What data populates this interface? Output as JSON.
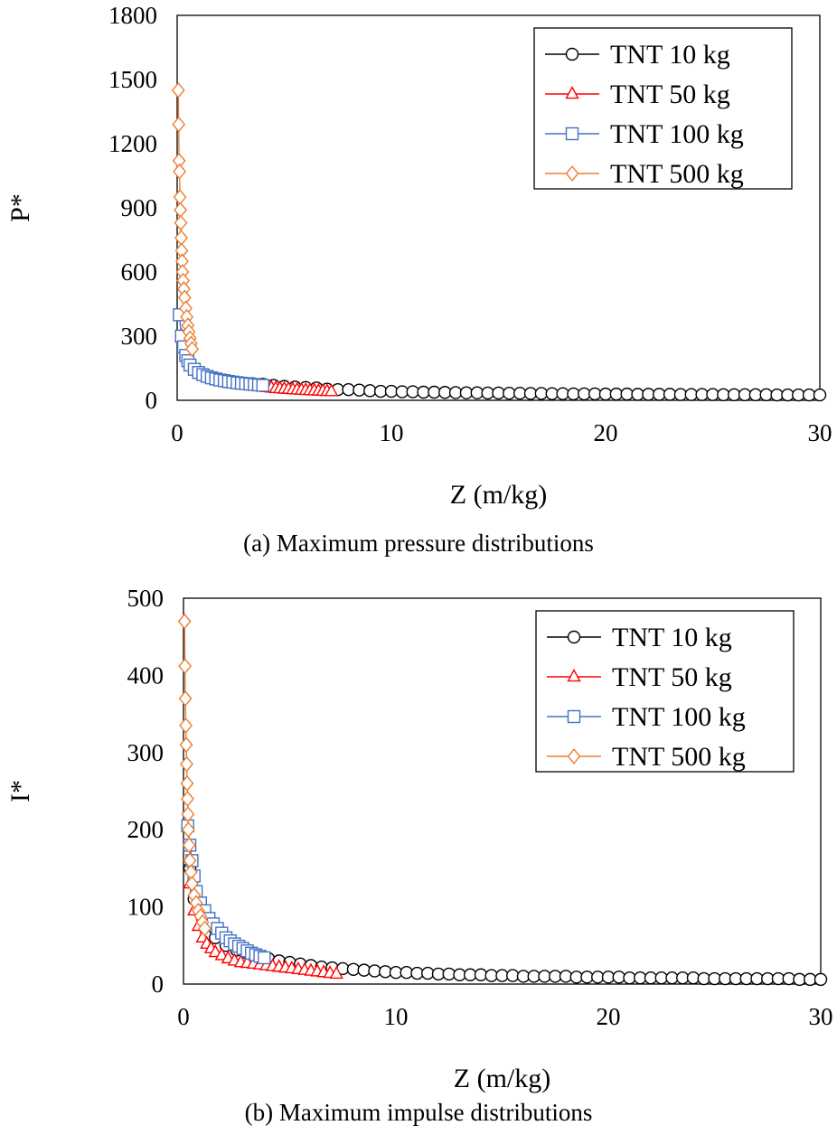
{
  "chart_data": [
    {
      "type": "scatter",
      "caption": "(a) Maximum pressure distributions",
      "xlabel": "Z (m/kg)",
      "ylabel": "P*",
      "xlim": [
        0,
        30
      ],
      "ylim": [
        0,
        1800
      ],
      "xticks": [
        0,
        10,
        20,
        30
      ],
      "yticks": [
        0,
        300,
        600,
        900,
        1200,
        1500,
        1800
      ],
      "grid": false,
      "legend": "top-right",
      "series": [
        {
          "name": "TNT 10 kg",
          "marker": "circle",
          "color": "#000000",
          "x": [
            0.3,
            0.5,
            1,
            1.5,
            2,
            2.5,
            3,
            3.5,
            4,
            4.5,
            5,
            5.5,
            6,
            6.5,
            7,
            7.5,
            8,
            8.5,
            9,
            9.5,
            10,
            10.5,
            11,
            11.5,
            12,
            12.5,
            13,
            13.5,
            14,
            14.5,
            15,
            15.5,
            16,
            16.5,
            17,
            17.5,
            18,
            18.5,
            19,
            19.5,
            20,
            20.5,
            21,
            21.5,
            22,
            22.5,
            23,
            23.5,
            24,
            24.5,
            25,
            25.5,
            26,
            26.5,
            27,
            27.5,
            28,
            28.5,
            29,
            29.5,
            30
          ],
          "y": [
            250,
            180,
            130,
            110,
            95,
            88,
            82,
            78,
            75,
            70,
            65,
            62,
            60,
            58,
            52,
            50,
            50,
            48,
            45,
            42,
            42,
            40,
            40,
            38,
            38,
            37,
            36,
            35,
            35,
            34,
            34,
            33,
            33,
            32,
            32,
            31,
            31,
            30,
            30,
            30,
            29,
            29,
            29,
            28,
            28,
            28,
            28,
            27,
            27,
            27,
            27,
            26,
            26,
            26,
            26,
            26,
            25,
            25,
            25,
            25,
            25
          ]
        },
        {
          "name": "TNT 50 kg",
          "marker": "triangle",
          "color": "#ff0000",
          "x": [
            0.2,
            0.4,
            0.7,
            1,
            1.5,
            2,
            2.5,
            3,
            3.5,
            4,
            4.2,
            4.4,
            4.6,
            4.8,
            5,
            5.2,
            5.4,
            5.6,
            5.8,
            6,
            6.2,
            6.4,
            6.6,
            6.8,
            7,
            7.2
          ],
          "y": [
            300,
            220,
            160,
            130,
            105,
            90,
            80,
            74,
            68,
            63,
            60,
            58,
            56,
            55,
            53,
            52,
            50,
            49,
            48,
            47,
            46,
            45,
            44,
            43,
            42,
            41
          ]
        },
        {
          "name": "TNT 100 kg",
          "marker": "square",
          "color": "#4472c4",
          "x": [
            0.1,
            0.2,
            0.3,
            0.4,
            0.5,
            0.6,
            0.8,
            1,
            1.2,
            1.4,
            1.6,
            1.8,
            2,
            2.2,
            2.4,
            2.6,
            2.8,
            3,
            3.2,
            3.4,
            3.6,
            3.8,
            4
          ],
          "y": [
            400,
            300,
            250,
            210,
            185,
            165,
            145,
            130,
            120,
            112,
            105,
            100,
            95,
            92,
            88,
            85,
            82,
            80,
            78,
            76,
            74,
            72,
            70
          ]
        },
        {
          "name": "TNT 500 kg",
          "marker": "diamond",
          "color": "#ed7d31",
          "x": [
            0.05,
            0.07,
            0.09,
            0.11,
            0.13,
            0.15,
            0.17,
            0.19,
            0.21,
            0.23,
            0.25,
            0.28,
            0.31,
            0.35,
            0.4,
            0.45,
            0.5,
            0.55,
            0.6,
            0.65,
            0.7
          ],
          "y": [
            1450,
            1290,
            1120,
            1070,
            950,
            890,
            830,
            760,
            700,
            650,
            600,
            560,
            520,
            480,
            430,
            390,
            350,
            320,
            290,
            265,
            240
          ]
        }
      ]
    },
    {
      "type": "scatter",
      "caption": "(b) Maximum impulse distributions",
      "xlabel": "Z (m/kg)",
      "ylabel": "I*",
      "xlim": [
        0,
        30
      ],
      "ylim": [
        0,
        500
      ],
      "xticks": [
        0,
        10,
        20,
        30
      ],
      "yticks": [
        0,
        100,
        200,
        300,
        400,
        500
      ],
      "grid": false,
      "legend": "top-right",
      "series": [
        {
          "name": "TNT 10 kg",
          "marker": "circle",
          "color": "#000000",
          "x": [
            0.3,
            0.5,
            1,
            1.5,
            2,
            2.5,
            3,
            3.5,
            4,
            4.5,
            5,
            5.5,
            6,
            6.5,
            7,
            7.5,
            8,
            8.5,
            9,
            9.5,
            10,
            10.5,
            11,
            11.5,
            12,
            12.5,
            13,
            13.5,
            14,
            14.5,
            15,
            15.5,
            16,
            16.5,
            17,
            17.5,
            18,
            18.5,
            19,
            19.5,
            20,
            20.5,
            21,
            21.5,
            22,
            22.5,
            23,
            23.5,
            24,
            24.5,
            25,
            25.5,
            26,
            26.5,
            27,
            27.5,
            28,
            28.5,
            29,
            29.5,
            30
          ],
          "y": [
            150,
            110,
            75,
            60,
            50,
            44,
            40,
            36,
            33,
            30,
            28,
            26,
            24,
            22,
            21,
            20,
            19,
            18,
            17,
            16,
            15,
            15,
            14,
            14,
            13,
            13,
            12,
            12,
            12,
            11,
            11,
            11,
            10,
            10,
            10,
            10,
            10,
            9,
            9,
            9,
            9,
            9,
            8,
            8,
            8,
            8,
            8,
            8,
            8,
            7,
            7,
            7,
            7,
            7,
            7,
            7,
            7,
            7,
            6,
            6,
            6
          ]
        },
        {
          "name": "TNT 50 kg",
          "marker": "triangle",
          "color": "#ff0000",
          "x": [
            0.3,
            0.5,
            0.7,
            0.9,
            1.1,
            1.3,
            1.5,
            1.8,
            2.1,
            2.4,
            2.7,
            3,
            3.3,
            3.6,
            3.9,
            4.2,
            4.5,
            4.8,
            5.1,
            5.4,
            5.7,
            6,
            6.3,
            6.6,
            6.9,
            7.2
          ],
          "y": [
            130,
            95,
            75,
            60,
            52,
            46,
            41,
            37,
            33,
            30,
            28,
            27,
            26,
            25,
            24,
            23,
            22,
            21,
            20,
            19,
            18,
            17,
            16,
            15,
            14,
            13
          ]
        },
        {
          "name": "TNT 100 kg",
          "marker": "square",
          "color": "#4472c4",
          "x": [
            0.2,
            0.3,
            0.4,
            0.5,
            0.6,
            0.8,
            1,
            1.2,
            1.4,
            1.6,
            1.8,
            2,
            2.2,
            2.4,
            2.6,
            2.8,
            3,
            3.2,
            3.4,
            3.6,
            3.8
          ],
          "y": [
            205,
            180,
            160,
            140,
            120,
            105,
            95,
            85,
            78,
            72,
            66,
            60,
            56,
            52,
            49,
            46,
            43,
            40,
            38,
            36,
            34
          ]
        },
        {
          "name": "TNT 500 kg",
          "marker": "diamond",
          "color": "#ed7d31",
          "x": [
            0.05,
            0.07,
            0.09,
            0.11,
            0.13,
            0.15,
            0.17,
            0.19,
            0.21,
            0.23,
            0.26,
            0.3,
            0.35,
            0.4,
            0.5,
            0.6,
            0.7,
            0.8,
            0.9,
            1
          ],
          "y": [
            470,
            412,
            370,
            335,
            310,
            285,
            260,
            240,
            220,
            200,
            180,
            160,
            145,
            130,
            115,
            105,
            95,
            88,
            80,
            72
          ]
        }
      ]
    }
  ]
}
